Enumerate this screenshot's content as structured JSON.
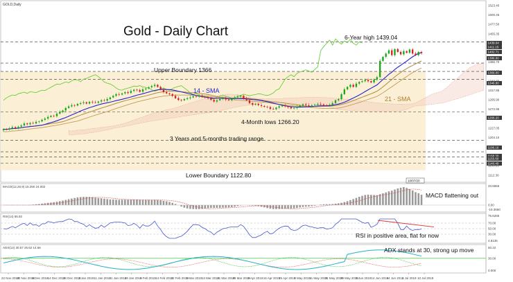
{
  "header": {
    "symbol": "GOLD,Daily"
  },
  "colors": {
    "up": "#1aa51a",
    "down": "#d42020",
    "sma14": "#2222cc",
    "sma21": "#b08a3e",
    "chikou": "#55cc22",
    "cloud": "#f2c4b4",
    "range_fill": "#fbf0d5",
    "macd": "#999999",
    "rsi": "#4455cc",
    "adx": "#20b0c8",
    "guide": "#333333"
  },
  "chart_data": [
    {
      "type": "candlestick",
      "title": "Gold - Daily Chart",
      "annotations": {
        "high": "6-Year high 1439.04",
        "upper": "Upper Boundary 1366",
        "sma14": "14 - SMA",
        "sma21": "21 - SMA",
        "lows": "4-Month lows 1266.20",
        "range": "3 Years and 5-months trading range",
        "lower": "Lower Boundary 1122.80"
      },
      "date_box": "10/07/20",
      "x_labels": [
        "22 Nov 2018",
        "30 Nov 2018",
        "6 Dec 2018",
        "14 Dec 2018",
        "24 Dec 2018",
        "3 Jan 2019",
        "11 Jan 2019",
        "21 Jan 2019",
        "29 Jan 2019",
        "6 Feb 2019",
        "14 Feb 2019",
        "22 Feb 2019",
        "5 Mar 2019",
        "13 Mar 2019",
        "21 Mar 2019",
        "29 Mar 2019",
        "8 Apr 2019",
        "16 Apr 2019",
        "25 Apr 2019",
        "3 May 2019",
        "11 May 2019",
        "21 May 2019",
        "29 May 2019",
        "6 Jun 2019",
        "14 Jun 2019",
        "24 Jun 2019",
        "2 Jul 2019",
        "10 Jul 2019"
      ],
      "y_ticks": [
        "1523.40",
        "1500.45",
        "1477.50",
        "1455.35",
        "1432.60",
        "1409.65",
        "1386.70",
        "1363.75",
        "1340.80",
        "1317.85",
        "1295.90",
        "1272.95",
        "1250.00",
        "1227.05",
        "1204.10",
        "1181.15",
        "1158.20",
        "1135.25",
        "1112.30"
      ],
      "price_badges": [
        "1439.04",
        "1411.15",
        "1402.71",
        "1386.60",
        "1366.00",
        "1346.80",
        "1266.20",
        "1196.16",
        "1168.30",
        "1155.60",
        "1140.40"
      ],
      "ylim": [
        1095,
        1535
      ],
      "guides": [
        1439.04,
        1386.6,
        1366.0,
        1346.8,
        1266.2,
        1196.16,
        1168.3,
        1155.6,
        1140.4
      ],
      "close": [
        1224,
        1223,
        1226,
        1229,
        1226,
        1230,
        1233,
        1238,
        1236,
        1239,
        1238,
        1242,
        1243,
        1247,
        1250,
        1254,
        1257,
        1256,
        1262,
        1266,
        1270,
        1276,
        1280,
        1283,
        1282,
        1286,
        1288,
        1290,
        1287,
        1291,
        1290,
        1289,
        1292,
        1295,
        1294,
        1298,
        1302,
        1306,
        1310,
        1309,
        1312,
        1315,
        1313,
        1318,
        1321,
        1320,
        1316,
        1322,
        1324,
        1327,
        1330,
        1333,
        1328,
        1322,
        1315,
        1312,
        1310,
        1306,
        1300,
        1296,
        1295,
        1298,
        1300,
        1302,
        1305,
        1304,
        1306,
        1303,
        1302,
        1300,
        1296,
        1292,
        1295,
        1298,
        1300,
        1297,
        1295,
        1299,
        1302,
        1304,
        1306,
        1300,
        1295,
        1288,
        1284,
        1286,
        1283,
        1281,
        1279,
        1278,
        1274,
        1273,
        1277,
        1280,
        1282,
        1280,
        1278,
        1275,
        1276,
        1279,
        1282,
        1285,
        1283,
        1281,
        1283,
        1284,
        1286,
        1285,
        1283,
        1282,
        1284,
        1288,
        1295,
        1298,
        1310,
        1322,
        1328,
        1333,
        1328,
        1336,
        1340,
        1342,
        1345,
        1342,
        1339,
        1346,
        1352,
        1392,
        1402,
        1410,
        1418,
        1406,
        1421,
        1414,
        1408,
        1416,
        1412,
        1420,
        1410,
        1406,
        1414,
        1411
      ]
    },
    {
      "type": "line",
      "title": "MACD(12,26,9) 15.260 24.002",
      "comment": "MACD flattening out",
      "ticks": [
        "33.5866",
        "0.00",
        "-19.3660"
      ]
    },
    {
      "type": "line",
      "title": "RSI(14) 55.92",
      "comment": "RSI in positive area, flat for now",
      "ticks": [
        "75.6265",
        "70.00",
        "50.00",
        "30.00",
        "4.8135"
      ]
    },
    {
      "type": "line",
      "title": "ADX(14) 30.57 25.62 14.66",
      "comment": "ADX stands at 30, strong up move",
      "ticks": [
        "50.22",
        "30.00",
        "0.000"
      ]
    }
  ]
}
